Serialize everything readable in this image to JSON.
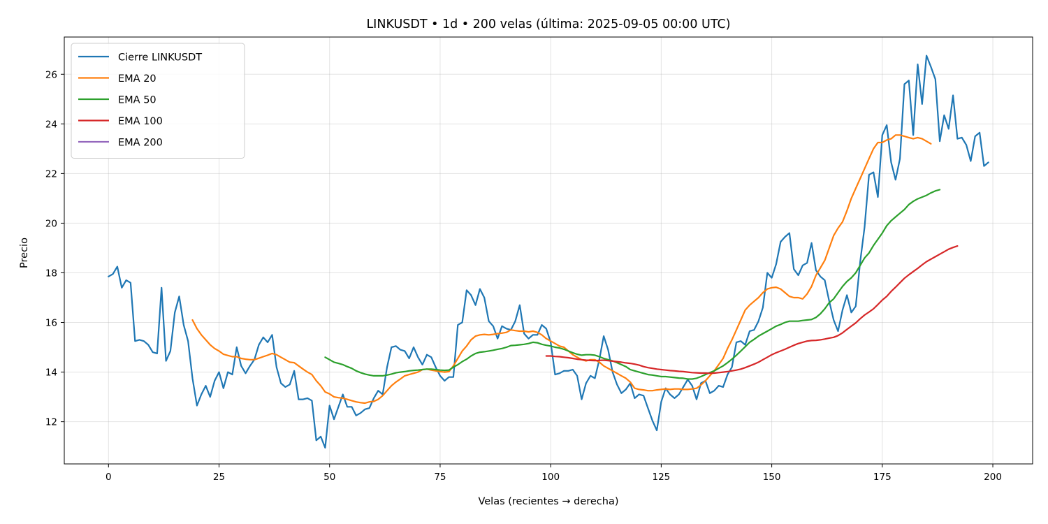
{
  "chart_data": {
    "type": "line",
    "title": "LINKUSDT • 1d • 200 velas  (última: 2025-09-05 00:00 UTC)",
    "xlabel": "Velas (recientes → derecha)",
    "ylabel": "Precio",
    "xlim": [
      -10,
      209
    ],
    "ylim": [
      10.3,
      27.5
    ],
    "xticks": [
      0,
      25,
      50,
      75,
      100,
      125,
      150,
      175,
      200
    ],
    "yticks": [
      12,
      14,
      16,
      18,
      20,
      22,
      24,
      26
    ],
    "grid": true,
    "legend_position": "top-left",
    "series": [
      {
        "name": "Cierre LINKUSDT",
        "color": "#1f77b4",
        "start": 0,
        "values": [
          17.85,
          17.95,
          18.25,
          17.4,
          17.7,
          17.6,
          15.25,
          15.3,
          15.25,
          15.1,
          14.8,
          14.75,
          17.4,
          14.45,
          14.85,
          16.4,
          17.05,
          15.9,
          15.25,
          13.75,
          12.65,
          13.1,
          13.45,
          13.0,
          13.65,
          14.0,
          13.35,
          14.0,
          13.9,
          15.0,
          14.25,
          13.95,
          14.25,
          14.5,
          15.1,
          15.4,
          15.2,
          15.5,
          14.2,
          13.55,
          13.4,
          13.5,
          14.05,
          12.9,
          12.9,
          12.95,
          12.85,
          11.25,
          11.4,
          10.95,
          12.65,
          12.1,
          12.6,
          13.1,
          12.6,
          12.6,
          12.25,
          12.35,
          12.5,
          12.55,
          12.95,
          13.25,
          13.1,
          14.2,
          15.0,
          15.05,
          14.9,
          14.85,
          14.55,
          15.0,
          14.6,
          14.3,
          14.7,
          14.6,
          14.2,
          13.85,
          13.65,
          13.8,
          13.8,
          15.9,
          16.0,
          17.3,
          17.1,
          16.7,
          17.35,
          17.0,
          16.05,
          15.85,
          15.35,
          15.85,
          15.75,
          15.7,
          16.05,
          16.7,
          15.55,
          15.35,
          15.5,
          15.5,
          15.9,
          15.75,
          15.2,
          13.9,
          13.95,
          14.05,
          14.05,
          14.1,
          13.85,
          12.9,
          13.55,
          13.85,
          13.75,
          14.5,
          15.45,
          14.9,
          14.0,
          13.5,
          13.15,
          13.3,
          13.55,
          12.95,
          13.1,
          13.05,
          12.55,
          12.05,
          11.65,
          12.8,
          13.35,
          13.1,
          12.95,
          13.1,
          13.4,
          13.7,
          13.45,
          12.9,
          13.55,
          13.65,
          13.15,
          13.25,
          13.45,
          13.4,
          13.9,
          14.2,
          15.2,
          15.25,
          15.1,
          15.65,
          15.7,
          16.05,
          16.6,
          18.0,
          17.8,
          18.35,
          19.25,
          19.45,
          19.6,
          18.15,
          17.9,
          18.3,
          18.4,
          19.2,
          18.1,
          17.85,
          17.7,
          16.85,
          16.1,
          15.65,
          16.5,
          17.1,
          16.4,
          16.65,
          18.45,
          19.85,
          21.95,
          22.05,
          21.05,
          23.55,
          23.95,
          22.45,
          21.75,
          22.6,
          25.6,
          25.75,
          23.55,
          26.4,
          24.8,
          26.75,
          26.3,
          25.8,
          23.3,
          24.35,
          23.8,
          25.15,
          23.4,
          23.45,
          23.15,
          22.5,
          23.5,
          23.65,
          22.3,
          22.45
        ]
      },
      {
        "name": "EMA 20",
        "color": "#ff7f0e",
        "start": 19,
        "values": [
          16.1,
          15.75,
          15.5,
          15.3,
          15.1,
          14.95,
          14.85,
          14.72,
          14.67,
          14.62,
          14.62,
          14.55,
          14.52,
          14.5,
          14.5,
          14.56,
          14.62,
          14.68,
          14.75,
          14.7,
          14.6,
          14.5,
          14.4,
          14.38,
          14.25,
          14.12,
          14.0,
          13.9,
          13.65,
          13.45,
          13.2,
          13.12,
          13.0,
          12.97,
          12.95,
          12.9,
          12.85,
          12.8,
          12.77,
          12.75,
          12.8,
          12.82,
          12.9,
          13.05,
          13.25,
          13.45,
          13.6,
          13.72,
          13.85,
          13.9,
          13.95,
          14.0,
          14.1,
          14.12,
          14.08,
          14.05,
          14.02,
          14.0,
          14.02,
          14.25,
          14.55,
          14.85,
          15.05,
          15.3,
          15.45,
          15.5,
          15.52,
          15.5,
          15.52,
          15.55,
          15.57,
          15.6,
          15.7,
          15.67,
          15.65,
          15.65,
          15.62,
          15.65,
          15.6,
          15.5,
          15.35,
          15.25,
          15.15,
          15.05,
          15.0,
          14.85,
          14.7,
          14.6,
          14.5,
          14.45,
          14.5,
          14.5,
          14.4,
          14.25,
          14.15,
          14.05,
          13.95,
          13.85,
          13.75,
          13.6,
          13.35,
          13.3,
          13.28,
          13.25,
          13.25,
          13.28,
          13.3,
          13.32,
          13.3,
          13.32,
          13.32,
          13.3,
          13.3,
          13.32,
          13.35,
          13.48,
          13.65,
          13.85,
          14.05,
          14.3,
          14.55,
          14.95,
          15.3,
          15.7,
          16.1,
          16.5,
          16.7,
          16.85,
          17.0,
          17.2,
          17.35,
          17.4,
          17.42,
          17.35,
          17.2,
          17.05,
          17.0,
          17.0,
          16.95,
          17.15,
          17.45,
          17.9,
          18.2,
          18.5,
          19.0,
          19.5,
          19.8,
          20.05,
          20.5,
          21.0,
          21.4,
          21.8,
          22.2,
          22.6,
          23.0,
          23.25,
          23.25,
          23.35,
          23.4,
          23.55,
          23.55,
          23.5,
          23.45,
          23.4,
          23.45,
          23.4,
          23.3,
          23.2
        ]
      },
      {
        "name": "EMA 50",
        "color": "#2ca02c",
        "start": 49,
        "values": [
          14.6,
          14.5,
          14.4,
          14.35,
          14.3,
          14.22,
          14.15,
          14.05,
          13.98,
          13.92,
          13.88,
          13.85,
          13.85,
          13.85,
          13.88,
          13.92,
          13.97,
          14.0,
          14.02,
          14.05,
          14.07,
          14.08,
          14.1,
          14.12,
          14.12,
          14.1,
          14.08,
          14.07,
          14.08,
          14.2,
          14.3,
          14.42,
          14.52,
          14.65,
          14.75,
          14.8,
          14.82,
          14.85,
          14.88,
          14.92,
          14.95,
          15.0,
          15.07,
          15.08,
          15.1,
          15.12,
          15.15,
          15.2,
          15.18,
          15.12,
          15.08,
          15.05,
          15.0,
          14.97,
          14.92,
          14.85,
          14.78,
          14.72,
          14.68,
          14.7,
          14.7,
          14.68,
          14.62,
          14.55,
          14.5,
          14.45,
          14.38,
          14.3,
          14.22,
          14.1,
          14.05,
          14.0,
          13.95,
          13.9,
          13.88,
          13.85,
          13.82,
          13.82,
          13.8,
          13.78,
          13.76,
          13.75,
          13.72,
          13.72,
          13.75,
          13.82,
          13.9,
          13.98,
          14.05,
          14.15,
          14.25,
          14.38,
          14.52,
          14.68,
          14.85,
          15.02,
          15.2,
          15.32,
          15.45,
          15.55,
          15.65,
          15.75,
          15.85,
          15.92,
          16.0,
          16.05,
          16.05,
          16.05,
          16.08,
          16.1,
          16.12,
          16.2,
          16.35,
          16.55,
          16.8,
          16.95,
          17.2,
          17.45,
          17.65,
          17.8,
          18.0,
          18.3,
          18.6,
          18.8,
          19.1,
          19.35,
          19.6,
          19.9,
          20.1,
          20.25,
          20.4,
          20.55,
          20.75,
          20.88,
          20.98,
          21.05,
          21.12,
          21.22,
          21.3,
          21.35
        ]
      },
      {
        "name": "EMA 100",
        "color": "#d62728",
        "start": 99,
        "values": [
          14.65,
          14.65,
          14.63,
          14.62,
          14.6,
          14.58,
          14.55,
          14.52,
          14.5,
          14.48,
          14.47,
          14.46,
          14.47,
          14.48,
          14.46,
          14.44,
          14.42,
          14.4,
          14.37,
          14.35,
          14.32,
          14.28,
          14.22,
          14.18,
          14.15,
          14.12,
          14.1,
          14.08,
          14.06,
          14.05,
          14.03,
          14.02,
          14.0,
          13.98,
          13.97,
          13.96,
          13.96,
          13.95,
          13.96,
          13.98,
          14.0,
          14.02,
          14.05,
          14.08,
          14.12,
          14.18,
          14.25,
          14.32,
          14.4,
          14.5,
          14.6,
          14.7,
          14.78,
          14.85,
          14.92,
          15.0,
          15.08,
          15.15,
          15.2,
          15.25,
          15.27,
          15.28,
          15.3,
          15.33,
          15.37,
          15.4,
          15.47,
          15.58,
          15.72,
          15.85,
          15.98,
          16.15,
          16.3,
          16.42,
          16.55,
          16.72,
          16.9,
          17.05,
          17.25,
          17.42,
          17.6,
          17.78,
          17.92,
          18.05,
          18.18,
          18.32,
          18.45,
          18.55,
          18.65,
          18.75,
          18.85,
          18.95,
          19.02,
          19.08
        ]
      },
      {
        "name": "EMA 200",
        "color": "#9467bd",
        "start": 0,
        "values": []
      }
    ]
  }
}
